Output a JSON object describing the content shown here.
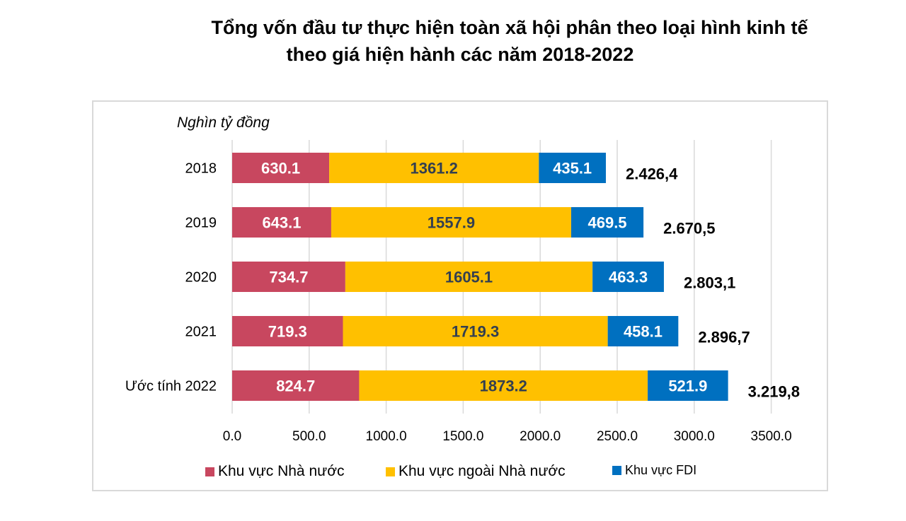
{
  "title_line1": "Tổng vốn đầu tư thực hiện toàn xã hội phân theo loại hình kinh tế",
  "title_line2": "theo giá hiện hành các năm 2018-2022",
  "chart_data": {
    "type": "bar",
    "orientation": "horizontal",
    "stacked": true,
    "title": "Tổng vốn đầu tư thực hiện toàn xã hội phân theo loại hình kinh tế theo giá hiện hành các năm 2018-2022",
    "unit_label": "Nghìn tỷ đồng",
    "categories": [
      "2018",
      "2019",
      "2020",
      "2021",
      "Ước tính 2022"
    ],
    "series": [
      {
        "name": "Khu vực Nhà nước",
        "color": "#c8475f",
        "values": [
          630.1,
          643.1,
          734.7,
          719.3,
          824.7
        ],
        "labels": [
          "630.1",
          "643.1",
          "734.7",
          "719.3",
          "824.7"
        ]
      },
      {
        "name": "Khu vực ngoài Nhà nước",
        "color": "#ffc000",
        "values": [
          1361.2,
          1557.9,
          1605.1,
          1719.3,
          1873.2
        ],
        "labels": [
          "1361.2",
          "1557.9",
          "1605.1",
          "1719.3",
          "1873.2"
        ]
      },
      {
        "name": "Khu vực FDI",
        "color": "#0070c0",
        "values": [
          435.1,
          469.5,
          463.3,
          458.1,
          521.9
        ],
        "labels": [
          "435.1",
          "469.5",
          "463.3",
          "458.1",
          "521.9"
        ]
      }
    ],
    "totals": [
      2426.4,
      2670.5,
      2803.1,
      2896.7,
      3219.8
    ],
    "total_labels": [
      "2.426,4",
      "2.670,5",
      "2.803,1",
      "2.896,7",
      "3.219,8"
    ],
    "xlim": [
      0,
      3500
    ],
    "xticks": [
      "0.0",
      "500.0",
      "1000.0",
      "1500.0",
      "2000.0",
      "2500.0",
      "3000.0",
      "3500.0"
    ],
    "grid": true,
    "legend_position": "bottom"
  }
}
